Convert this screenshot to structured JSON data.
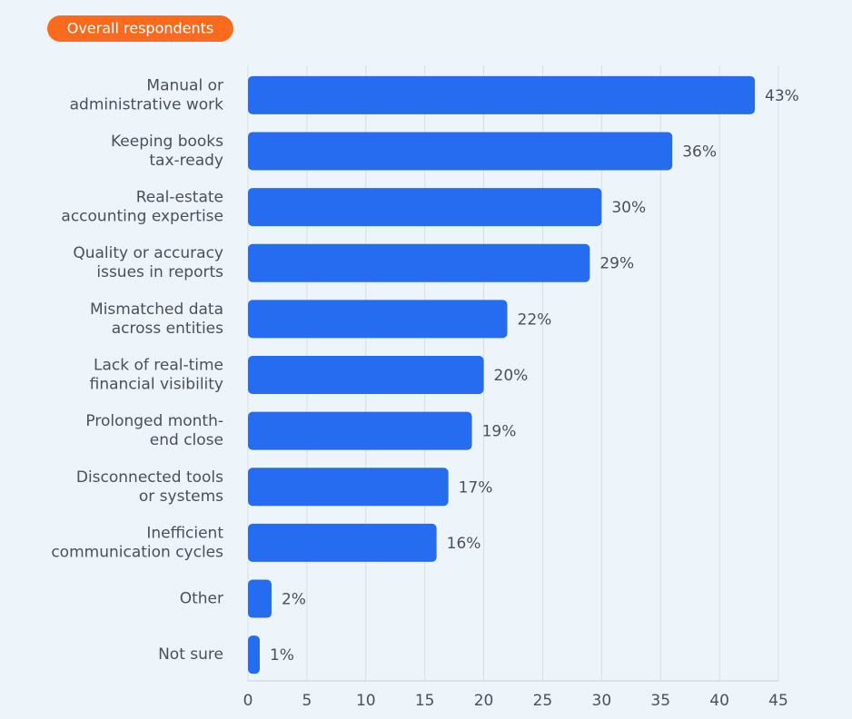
{
  "chart_data": {
    "type": "bar",
    "orientation": "horizontal",
    "subtitle": "Overall respondents",
    "categories": [
      "Manual or\nadministrative work",
      "Keeping books\ntax-ready",
      "Real-estate\naccounting expertise",
      "Quality or accuracy\nissues in reports",
      "Mismatched data\nacross entities",
      "Lack of real-time\nfinancial visibility",
      "Prolonged month-\nend close",
      "Disconnected tools\nor systems",
      "Inefficient\ncommunication cycles",
      "Other",
      "Not sure"
    ],
    "values": [
      43,
      36,
      30,
      29,
      22,
      20,
      19,
      17,
      16,
      2,
      1
    ],
    "value_labels": [
      "43%",
      "36%",
      "30%",
      "29%",
      "22%",
      "20%",
      "19%",
      "17%",
      "16%",
      "2%",
      "1%"
    ],
    "color": "#256cf0",
    "xlim": [
      0,
      45
    ],
    "xticks": [
      0,
      5,
      10,
      15,
      20,
      25,
      30,
      35,
      40,
      45
    ],
    "grid": true
  }
}
